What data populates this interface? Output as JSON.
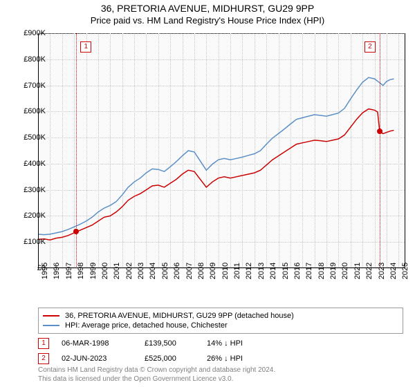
{
  "title": "36, PRETORIA AVENUE, MIDHURST, GU29 9PP",
  "subtitle": "Price paid vs. HM Land Registry's House Price Index (HPI)",
  "chart": {
    "type": "line",
    "x_range": [
      1995,
      2025.5
    ],
    "y_range": [
      0,
      900000
    ],
    "y_ticks": [
      0,
      100000,
      200000,
      300000,
      400000,
      500000,
      600000,
      700000,
      800000,
      900000
    ],
    "y_tick_labels": [
      "£0",
      "£100K",
      "£200K",
      "£300K",
      "£400K",
      "£500K",
      "£600K",
      "£700K",
      "£800K",
      "£900K"
    ],
    "x_ticks": [
      1995,
      1996,
      1997,
      1998,
      1999,
      2000,
      2001,
      2002,
      2003,
      2004,
      2005,
      2006,
      2007,
      2008,
      2009,
      2010,
      2011,
      2012,
      2013,
      2014,
      2015,
      2016,
      2017,
      2018,
      2019,
      2020,
      2021,
      2022,
      2023,
      2024,
      2025
    ],
    "background_color": "#fafafa",
    "grid_color": "#c8c8c8",
    "series": [
      {
        "name": "address",
        "label": "36, PRETORIA AVENUE, MIDHURST, GU29 9PP (detached house)",
        "color": "#cc0000",
        "width": 1.5,
        "points": [
          [
            1995,
            110000
          ],
          [
            1995.5,
            112000
          ],
          [
            1996,
            108000
          ],
          [
            1996.5,
            115000
          ],
          [
            1997,
            118000
          ],
          [
            1997.5,
            125000
          ],
          [
            1998,
            135000
          ],
          [
            1998.18,
            139500
          ],
          [
            1998.5,
            145000
          ],
          [
            1999,
            155000
          ],
          [
            1999.5,
            165000
          ],
          [
            2000,
            180000
          ],
          [
            2000.5,
            195000
          ],
          [
            2001,
            200000
          ],
          [
            2001.5,
            215000
          ],
          [
            2002,
            235000
          ],
          [
            2002.5,
            260000
          ],
          [
            2003,
            275000
          ],
          [
            2003.5,
            285000
          ],
          [
            2004,
            300000
          ],
          [
            2004.5,
            315000
          ],
          [
            2005,
            318000
          ],
          [
            2005.5,
            310000
          ],
          [
            2006,
            325000
          ],
          [
            2006.5,
            340000
          ],
          [
            2007,
            360000
          ],
          [
            2007.5,
            375000
          ],
          [
            2008,
            370000
          ],
          [
            2008.5,
            340000
          ],
          [
            2009,
            310000
          ],
          [
            2009.5,
            330000
          ],
          [
            2010,
            345000
          ],
          [
            2010.5,
            350000
          ],
          [
            2011,
            345000
          ],
          [
            2011.5,
            350000
          ],
          [
            2012,
            355000
          ],
          [
            2012.5,
            360000
          ],
          [
            2013,
            365000
          ],
          [
            2013.5,
            375000
          ],
          [
            2014,
            395000
          ],
          [
            2014.5,
            415000
          ],
          [
            2015,
            430000
          ],
          [
            2015.5,
            445000
          ],
          [
            2016,
            460000
          ],
          [
            2016.5,
            475000
          ],
          [
            2017,
            480000
          ],
          [
            2017.5,
            485000
          ],
          [
            2018,
            490000
          ],
          [
            2018.5,
            488000
          ],
          [
            2019,
            485000
          ],
          [
            2019.5,
            490000
          ],
          [
            2020,
            495000
          ],
          [
            2020.5,
            510000
          ],
          [
            2021,
            540000
          ],
          [
            2021.5,
            570000
          ],
          [
            2022,
            595000
          ],
          [
            2022.5,
            610000
          ],
          [
            2023,
            605000
          ],
          [
            2023.25,
            598000
          ],
          [
            2023.42,
            525000
          ],
          [
            2023.7,
            515000
          ],
          [
            2024,
            520000
          ],
          [
            2024.3,
            525000
          ],
          [
            2024.6,
            528000
          ]
        ]
      },
      {
        "name": "hpi",
        "label": "HPI: Average price, detached house, Chichester",
        "color": "#5b8fc7",
        "width": 1.5,
        "points": [
          [
            1995,
            130000
          ],
          [
            1995.5,
            128000
          ],
          [
            1996,
            130000
          ],
          [
            1996.5,
            135000
          ],
          [
            1997,
            140000
          ],
          [
            1997.5,
            148000
          ],
          [
            1998,
            158000
          ],
          [
            1998.5,
            168000
          ],
          [
            1999,
            180000
          ],
          [
            1999.5,
            195000
          ],
          [
            2000,
            215000
          ],
          [
            2000.5,
            230000
          ],
          [
            2001,
            240000
          ],
          [
            2001.5,
            255000
          ],
          [
            2002,
            280000
          ],
          [
            2002.5,
            310000
          ],
          [
            2003,
            330000
          ],
          [
            2003.5,
            345000
          ],
          [
            2004,
            365000
          ],
          [
            2004.5,
            380000
          ],
          [
            2005,
            378000
          ],
          [
            2005.5,
            370000
          ],
          [
            2006,
            388000
          ],
          [
            2006.5,
            408000
          ],
          [
            2007,
            430000
          ],
          [
            2007.5,
            450000
          ],
          [
            2008,
            445000
          ],
          [
            2008.5,
            410000
          ],
          [
            2009,
            375000
          ],
          [
            2009.5,
            398000
          ],
          [
            2010,
            415000
          ],
          [
            2010.5,
            420000
          ],
          [
            2011,
            415000
          ],
          [
            2011.5,
            420000
          ],
          [
            2012,
            425000
          ],
          [
            2012.5,
            432000
          ],
          [
            2013,
            438000
          ],
          [
            2013.5,
            450000
          ],
          [
            2014,
            475000
          ],
          [
            2014.5,
            498000
          ],
          [
            2015,
            515000
          ],
          [
            2015.5,
            533000
          ],
          [
            2016,
            552000
          ],
          [
            2016.5,
            570000
          ],
          [
            2017,
            576000
          ],
          [
            2017.5,
            582000
          ],
          [
            2018,
            588000
          ],
          [
            2018.5,
            585000
          ],
          [
            2019,
            582000
          ],
          [
            2019.5,
            588000
          ],
          [
            2020,
            594000
          ],
          [
            2020.5,
            612000
          ],
          [
            2021,
            648000
          ],
          [
            2021.5,
            682000
          ],
          [
            2022,
            712000
          ],
          [
            2022.5,
            730000
          ],
          [
            2023,
            725000
          ],
          [
            2023.42,
            710000
          ],
          [
            2023.7,
            700000
          ],
          [
            2024,
            715000
          ],
          [
            2024.3,
            722000
          ],
          [
            2024.6,
            725000
          ]
        ]
      }
    ],
    "markers": [
      {
        "n": "1",
        "x": 1998.18,
        "y": 139500,
        "color": "#cc0000"
      },
      {
        "n": "2",
        "x": 2023.42,
        "y": 525000,
        "color": "#cc0000"
      }
    ]
  },
  "legend": {
    "items": [
      {
        "color": "#cc0000",
        "label": "36, PRETORIA AVENUE, MIDHURST, GU29 9PP (detached house)"
      },
      {
        "color": "#5b8fc7",
        "label": "HPI: Average price, detached house, Chichester"
      }
    ]
  },
  "transactions": [
    {
      "n": "1",
      "color": "#cc0000",
      "date": "06-MAR-1998",
      "price": "£139,500",
      "pct": "14% ↓ HPI"
    },
    {
      "n": "2",
      "color": "#cc0000",
      "date": "02-JUN-2023",
      "price": "£525,000",
      "pct": "26% ↓ HPI"
    }
  ],
  "copyright": {
    "line1": "Contains HM Land Registry data © Crown copyright and database right 2024.",
    "line2": "This data is licensed under the Open Government Licence v3.0."
  }
}
